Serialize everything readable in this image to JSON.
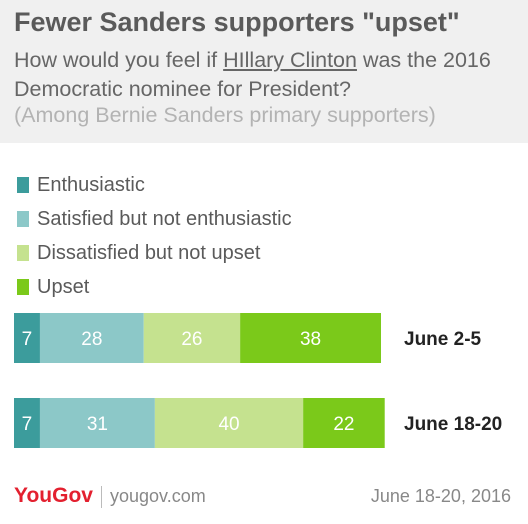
{
  "header": {
    "title": "Fewer Sanders supporters \"upset\"",
    "subtitle_pre": "How would you feel if ",
    "subtitle_link": "HIllary Clinton",
    "subtitle_post": " was the 2016 Democratic nominee for President?",
    "note": "(Among Bernie Sanders primary supporters)"
  },
  "chart_data": {
    "type": "bar",
    "orientation": "horizontal",
    "stacked": true,
    "categories": [
      "June 2-5",
      "June 18-20"
    ],
    "series": [
      {
        "name": "Enthusiastic",
        "color": "#3c9c9c",
        "values": [
          7,
          7
        ]
      },
      {
        "name": "Satisfied but not enthusiastic",
        "color": "#8cc8c8",
        "values": [
          28,
          31
        ]
      },
      {
        "name": "Dissatisfied but not upset",
        "color": "#c5e28f",
        "values": [
          26,
          40
        ]
      },
      {
        "name": "Upset",
        "color": "#7bc91a",
        "values": [
          38,
          22
        ]
      }
    ]
  },
  "footer": {
    "brand": "YouGov",
    "site": "yougov.com",
    "date": "June 18-20, 2016"
  }
}
